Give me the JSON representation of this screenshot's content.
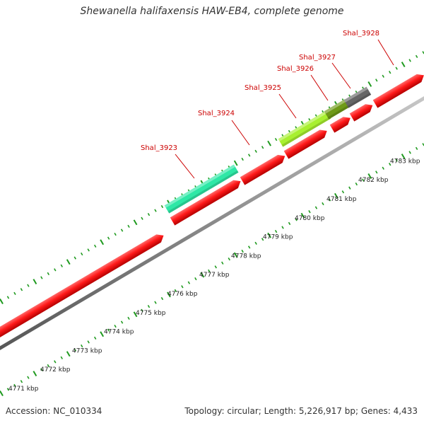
{
  "title": "Shewanella halifaxensis HAW-EB4, complete genome",
  "footer": {
    "accession": "Accession: NC_010334",
    "summary": "Topology: circular; Length: 5,226,917 bp; Genes: 4,433"
  },
  "ticks": [
    {
      "label": "4771 kbp"
    },
    {
      "label": "4772 kbp"
    },
    {
      "label": "4773 kbp"
    },
    {
      "label": "4774 kbp"
    },
    {
      "label": "4775 kbp"
    },
    {
      "label": "4776 kbp"
    },
    {
      "label": "4777 kbp"
    },
    {
      "label": "4778 kbp"
    },
    {
      "label": "4779 kbp"
    },
    {
      "label": "4780 kbp"
    },
    {
      "label": "4781 kbp"
    },
    {
      "label": "4782 kbp"
    },
    {
      "label": "4783 kbp"
    }
  ],
  "genes": [
    {
      "label": "Shal_3923",
      "color": "#2ee8a6"
    },
    {
      "label": "Shal_3924",
      "color": "#ff1a1a"
    },
    {
      "label": "Shal_3925",
      "color": "#a8f030"
    },
    {
      "label": "Shal_3926",
      "color": "#6f9a18"
    },
    {
      "label": "Shal_3927",
      "color": "#666666"
    },
    {
      "label": "Shal_3928",
      "color": "#ff1a1a"
    }
  ],
  "colors": {
    "cds": "#ff1a1a",
    "backbone": "#8a8a8a",
    "tick": "#1f9a1f",
    "gene_label": "#cc0000",
    "tick_label": "#222222"
  }
}
